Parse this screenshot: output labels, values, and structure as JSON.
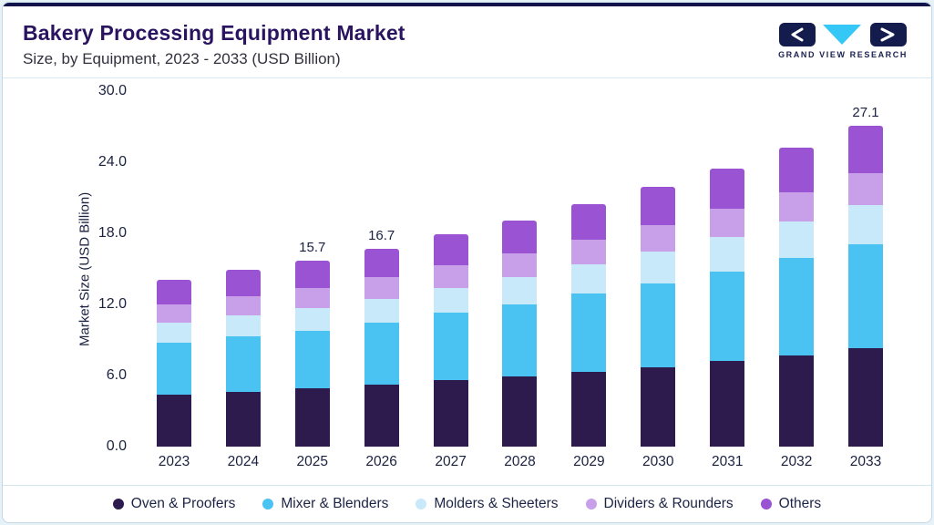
{
  "header": {
    "title": "Bakery Processing Equipment Market",
    "subtitle": "Size, by Equipment, 2023 - 2033 (USD Billion)",
    "logo_text": "GRAND VIEW RESEARCH"
  },
  "chart_data": {
    "type": "bar",
    "stacked": true,
    "title": "Bakery Processing Equipment Market Size, by Equipment, 2023 - 2033 (USD Billion)",
    "xlabel": "",
    "ylabel": "Market Size (USD Billion)",
    "ylim": [
      0,
      30
    ],
    "yticks": [
      0,
      6,
      12,
      18,
      24,
      30
    ],
    "ytick_labels": [
      "0.0",
      "6.0",
      "12.0",
      "18.0",
      "24.0",
      "30.0"
    ],
    "grid": false,
    "legend_position": "bottom",
    "categories": [
      "2023",
      "2024",
      "2025",
      "2026",
      "2027",
      "2028",
      "2029",
      "2030",
      "2031",
      "2032",
      "2033"
    ],
    "series": [
      {
        "name": "Oven & Proofers",
        "color": "#2d1b4e",
        "values": [
          4.4,
          4.6,
          4.9,
          5.2,
          5.6,
          5.9,
          6.3,
          6.7,
          7.2,
          7.7,
          8.3
        ]
      },
      {
        "name": "Mixer & Blenders",
        "color": "#4ac3f3",
        "values": [
          4.4,
          4.7,
          4.9,
          5.3,
          5.7,
          6.1,
          6.6,
          7.1,
          7.6,
          8.2,
          8.8
        ]
      },
      {
        "name": "Molders & Sheeters",
        "color": "#c8e9fa",
        "values": [
          1.7,
          1.8,
          1.9,
          2.0,
          2.1,
          2.3,
          2.5,
          2.7,
          2.9,
          3.1,
          3.3
        ]
      },
      {
        "name": "Dividers & Rounders",
        "color": "#c89fe9",
        "values": [
          1.5,
          1.6,
          1.7,
          1.8,
          1.9,
          2.0,
          2.1,
          2.2,
          2.4,
          2.5,
          2.7
        ]
      },
      {
        "name": "Others",
        "color": "#9953d3",
        "values": [
          2.1,
          2.2,
          2.3,
          2.4,
          2.6,
          2.8,
          3.0,
          3.2,
          3.4,
          3.7,
          4.0
        ]
      }
    ],
    "totals": [
      14.1,
      14.9,
      15.7,
      16.7,
      17.9,
      19.1,
      20.5,
      21.9,
      23.5,
      25.2,
      27.1
    ],
    "bar_labels": {
      "2025": "15.7",
      "2026": "16.7",
      "2033": "27.1"
    }
  }
}
